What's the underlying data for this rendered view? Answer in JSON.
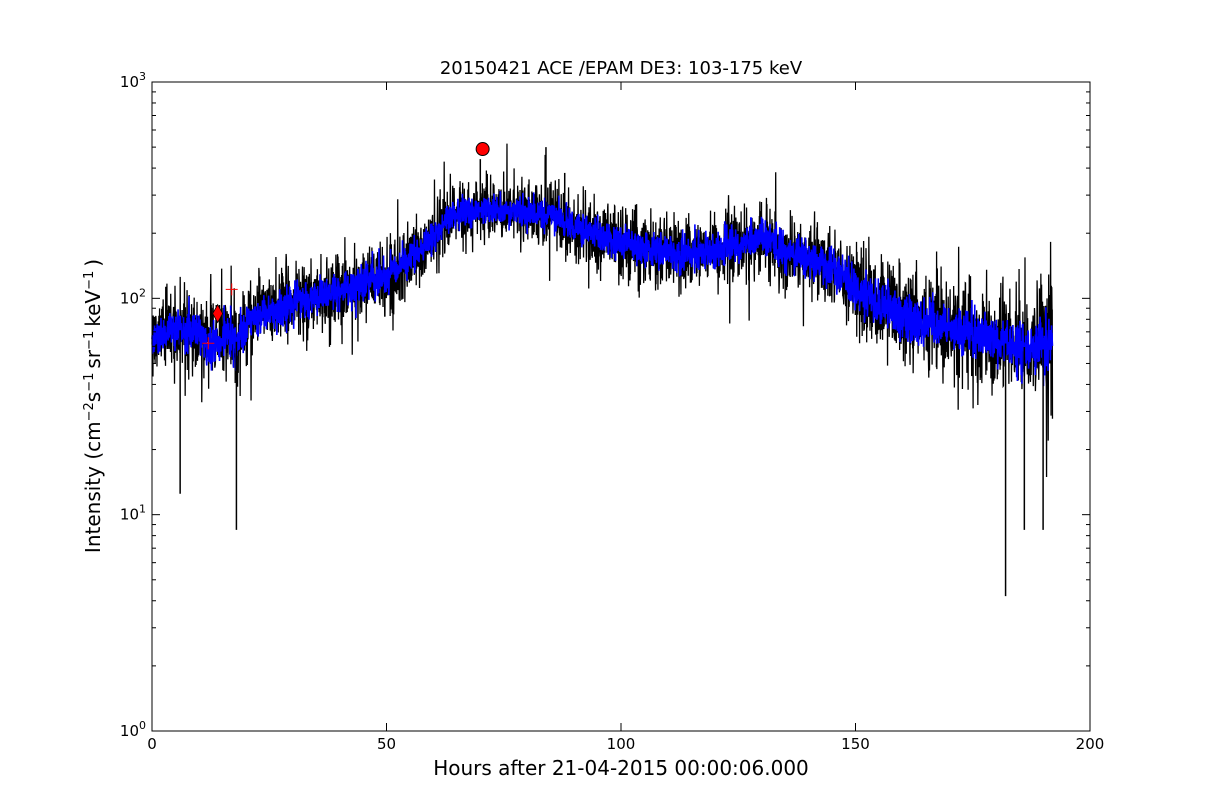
{
  "chart_data": {
    "type": "line",
    "title": "20150421 ACE /EPAM DE3: 103-175 keV",
    "xlabel": "Hours after 21-04-2015 00:00:06.000",
    "ylabel": {
      "prefix": "Intensity (cm",
      "exp1": "−2",
      "mid1": "s",
      "exp2": "−1",
      "mid2": "sr",
      "exp3": "−1",
      "mid3": "keV",
      "exp4": "−1",
      "suffix": ")"
    },
    "xlim": [
      0,
      200
    ],
    "ylim": [
      1,
      1000
    ],
    "yscale": "log",
    "x_ticks": [
      0,
      50,
      100,
      150,
      200
    ],
    "x_tick_labels": [
      "0",
      "50",
      "100",
      "150",
      "200"
    ],
    "y_ticks": [
      1,
      10,
      100,
      1000
    ],
    "y_tick_labels": [
      {
        "base": "10",
        "exp": "0"
      },
      {
        "base": "10",
        "exp": "1"
      },
      {
        "base": "10",
        "exp": "2"
      },
      {
        "base": "10",
        "exp": "3"
      }
    ],
    "series": [
      {
        "color": "#000000",
        "envelope_x": [
          0,
          5,
          10,
          12,
          15,
          18,
          20,
          25,
          30,
          35,
          40,
          45,
          50,
          55,
          60,
          63,
          66,
          70,
          75,
          80,
          85,
          90,
          95,
          100,
          105,
          110,
          115,
          120,
          125,
          130,
          135,
          140,
          145,
          150,
          155,
          160,
          165,
          170,
          175,
          180,
          185,
          190,
          192
        ],
        "envelope_center": [
          65,
          72,
          68,
          60,
          66,
          63,
          75,
          88,
          95,
          102,
          108,
          118,
          128,
          150,
          190,
          230,
          250,
          265,
          255,
          250,
          245,
          215,
          195,
          180,
          170,
          165,
          160,
          170,
          175,
          190,
          165,
          150,
          140,
          110,
          95,
          82,
          76,
          72,
          68,
          63,
          60,
          58,
          66
        ],
        "envelope_spread": [
          1.55,
          1.55,
          1.55,
          1.6,
          1.65,
          1.7,
          1.6,
          1.55,
          1.55,
          1.55,
          1.5,
          1.5,
          1.5,
          1.45,
          1.4,
          1.4,
          1.4,
          1.4,
          1.4,
          1.4,
          1.45,
          1.45,
          1.5,
          1.5,
          1.5,
          1.5,
          1.5,
          1.5,
          1.5,
          1.5,
          1.5,
          1.5,
          1.55,
          1.6,
          1.65,
          1.7,
          1.7,
          1.75,
          1.75,
          1.8,
          1.85,
          1.85,
          1.85
        ],
        "min_points": [
          [
            6,
            12.5
          ],
          [
            18,
            8.5
          ],
          [
            182,
            4.2
          ],
          [
            186,
            8.5
          ],
          [
            190,
            8.5
          ]
        ],
        "max_points": [
          [
            70,
            440
          ],
          [
            84,
            500
          ],
          [
            88,
            380
          ]
        ]
      },
      {
        "color": "#0000ff"
      }
    ],
    "markers": [
      {
        "shape": "circle",
        "x": 70.5,
        "y": 490,
        "color": "#ff0000"
      },
      {
        "shape": "diamond",
        "x": 14,
        "y": 85,
        "color": "#ff0000"
      },
      {
        "shape": "plus",
        "x": 12,
        "y": 62,
        "color": "#ff0000"
      },
      {
        "shape": "plus",
        "x": 17,
        "y": 110,
        "color": "#ff0000"
      }
    ]
  }
}
